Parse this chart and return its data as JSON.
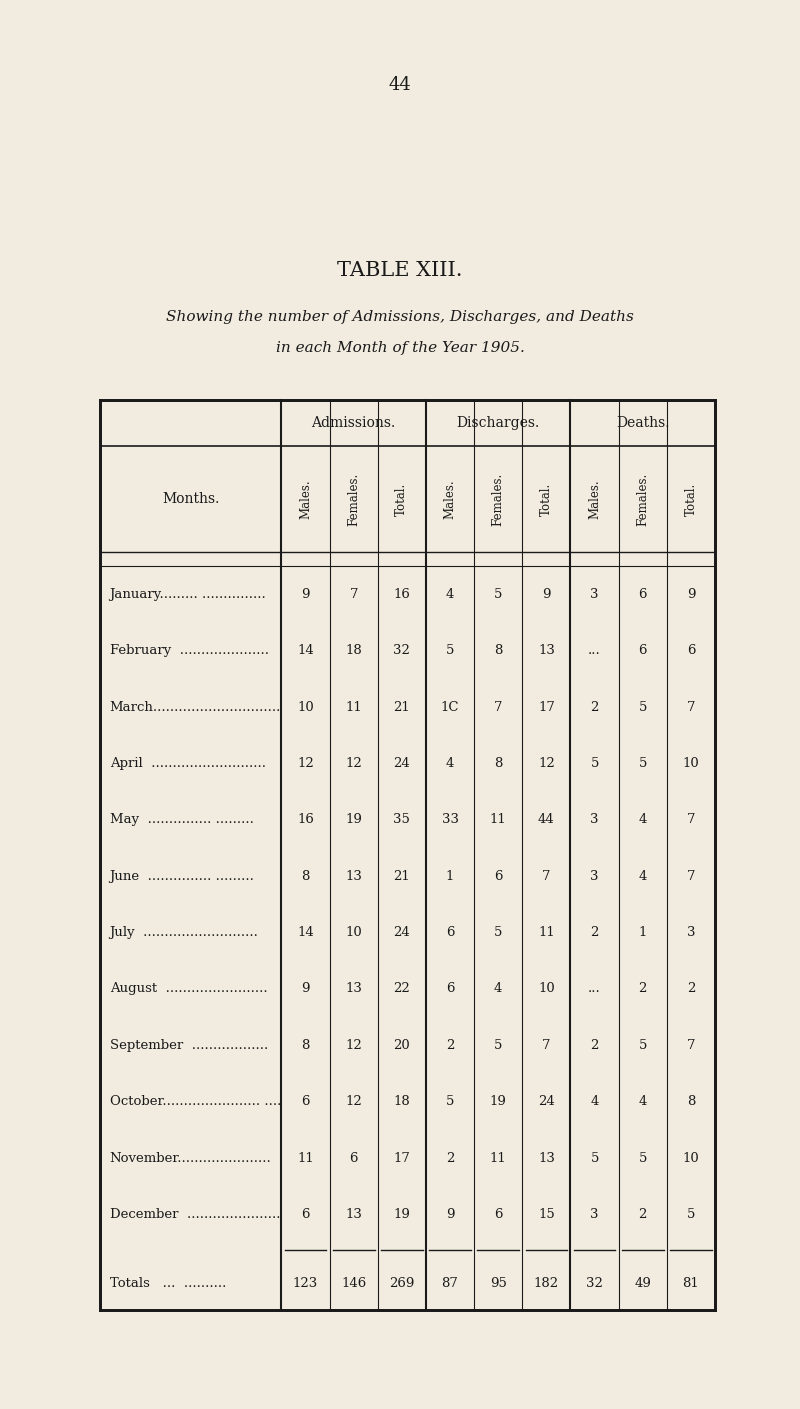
{
  "title": "TABLE XIII.",
  "subtitle_line1": "Showing the number of Admissions, Discharges, and Deaths",
  "subtitle_line2": "in each Month of the Year 1905.",
  "page_number": "44",
  "background_color": "#f2ece0",
  "text_color": "#1a1a1a",
  "group_headers": [
    "Admissions.",
    "Discharges.",
    "Deaths."
  ],
  "col_headers_rotated": [
    "Males.",
    "Females.",
    "Total.",
    "Males.",
    "Females.",
    "Total.",
    "Males.",
    "Females.",
    "Total."
  ],
  "row_header": "Months.",
  "months": [
    "January",
    "February",
    "March",
    "April",
    "May",
    "June",
    "July",
    "August",
    "September",
    "October",
    "November",
    "December"
  ],
  "month_dots": [
    "January......... ...............",
    "February  .....................",
    "March..............................",
    "April  ...........................",
    "May  ............... .........",
    "June  ............... .........",
    "July  ...........................",
    "August  ........................",
    "September  ..................",
    "October....................... ....",
    "November......................",
    "December  ......................"
  ],
  "data": [
    [
      "9",
      "7",
      "16",
      "4",
      "5",
      "9",
      "3",
      "6",
      "9"
    ],
    [
      "14",
      "18",
      "32",
      "5",
      "8",
      "13",
      "...",
      "6",
      "6"
    ],
    [
      "10",
      "11",
      "21",
      "1C",
      "7",
      "17",
      "2",
      "5",
      "7"
    ],
    [
      "12",
      "12",
      "24",
      "4",
      "8",
      "12",
      "5",
      "5",
      "10"
    ],
    [
      "16",
      "19",
      "35",
      "33",
      "11",
      "44",
      "3",
      "4",
      "7"
    ],
    [
      "8",
      "13",
      "21",
      "1",
      "6",
      "7",
      "3",
      "4",
      "7"
    ],
    [
      "14",
      "10",
      "24",
      "6",
      "5",
      "11",
      "2",
      "1",
      "3"
    ],
    [
      "9",
      "13",
      "22",
      "6",
      "4",
      "10",
      "...",
      "2",
      "2"
    ],
    [
      "8",
      "12",
      "20",
      "2",
      "5",
      "7",
      "2",
      "5",
      "7"
    ],
    [
      "6",
      "12",
      "18",
      "5",
      "19",
      "24",
      "4",
      "4",
      "8"
    ],
    [
      "11",
      "6",
      "17",
      "2",
      "11",
      "13",
      "5",
      "5",
      "10"
    ],
    [
      "6",
      "13",
      "19",
      "9",
      "6",
      "15",
      "3",
      "2",
      "5"
    ]
  ],
  "totals": [
    "123",
    "146",
    "269",
    "87",
    "95",
    "182",
    "32",
    "49",
    "81"
  ],
  "totals_label": "Totals   ...  .........."
}
